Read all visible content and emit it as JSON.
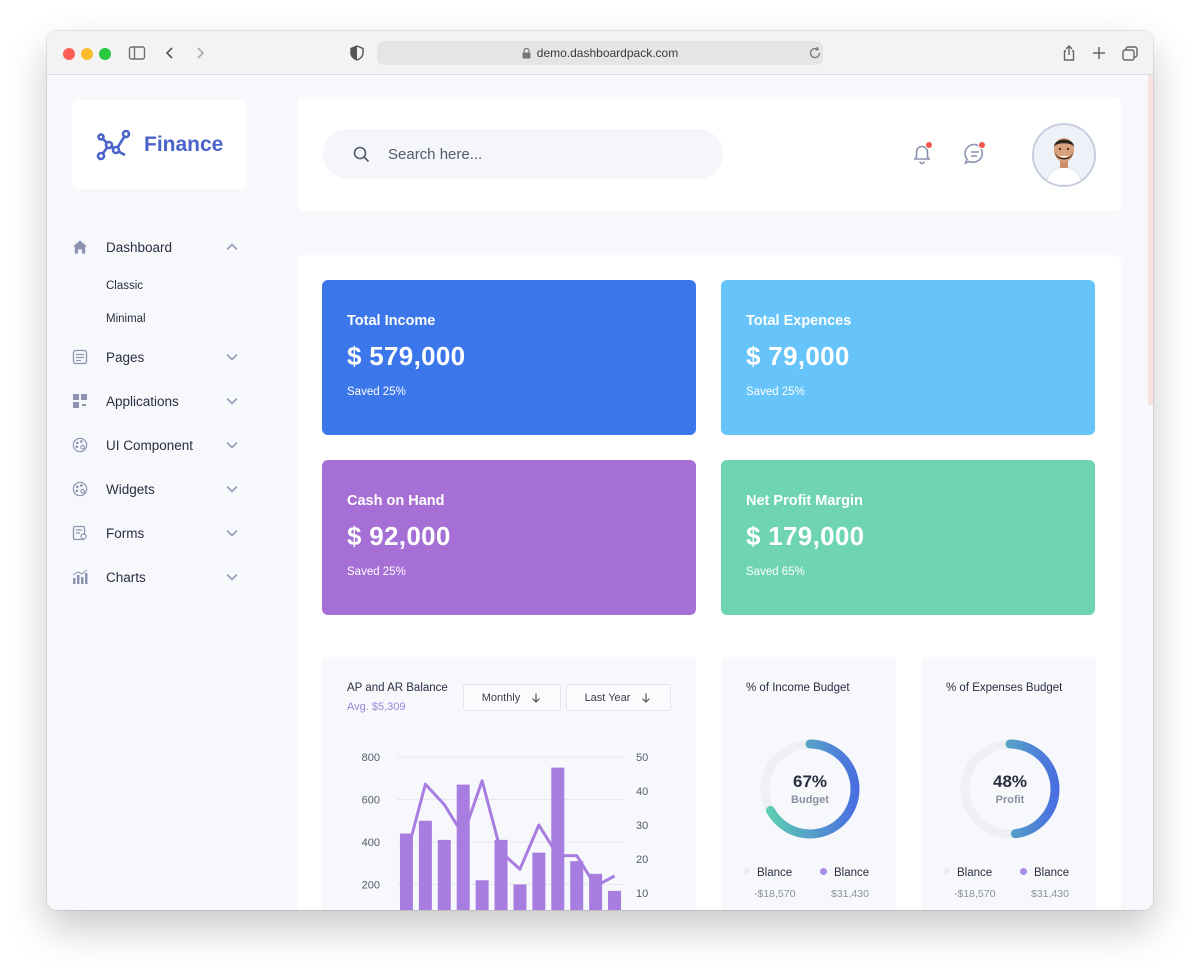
{
  "browser": {
    "url": "demo.dashboardpack.com"
  },
  "brand": {
    "name": "Finance"
  },
  "sidebar": {
    "items": [
      {
        "label": "Dashboard",
        "icon": "home-icon",
        "expanded": true,
        "children": [
          "Classic",
          "Minimal"
        ]
      },
      {
        "label": "Pages",
        "icon": "pages-icon"
      },
      {
        "label": "Applications",
        "icon": "grid-icon"
      },
      {
        "label": "UI Component",
        "icon": "palette-icon"
      },
      {
        "label": "Widgets",
        "icon": "palette-icon"
      },
      {
        "label": "Forms",
        "icon": "form-icon"
      },
      {
        "label": "Charts",
        "icon": "bar-chart-icon"
      }
    ]
  },
  "header": {
    "search_placeholder": "Search here..."
  },
  "stats": [
    {
      "title": "Total Income",
      "value": "$ 579,000",
      "sub": "Saved 25%",
      "color": "#3b76ea"
    },
    {
      "title": "Total Expences",
      "value": "$ 79,000",
      "sub": "Saved 25%",
      "color": "#66c4fb"
    },
    {
      "title": "Cash on Hand",
      "value": "$ 92,000",
      "sub": "Saved 25%",
      "color": "#a66fd5"
    },
    {
      "title": "Net Profit Margin",
      "value": "$ 179,000",
      "sub": "Saved 65%",
      "color": "#6fd4b1"
    }
  ],
  "balance_card": {
    "title": "AP and AR Balance",
    "avg": "Avg. $5,309",
    "period_options": {
      "selected": "Monthly"
    },
    "range_options": {
      "selected": "Last Year"
    }
  },
  "income_budget": {
    "title": "% of Income Budget",
    "percent": "67%",
    "label": "Budget",
    "legend": [
      {
        "name": "Blance",
        "value": "-$18,570"
      },
      {
        "name": "Blance",
        "value": "$31,430"
      }
    ]
  },
  "expenses_budget": {
    "title": "% of Expenses Budget",
    "percent": "48%",
    "label": "Profit",
    "legend": [
      {
        "name": "Blance",
        "value": "-$18,570"
      },
      {
        "name": "Blance",
        "value": "$31,430"
      }
    ]
  },
  "chart_data": {
    "type": "bar",
    "y_left_ticks": [
      "800",
      "600",
      "400",
      "200"
    ],
    "y_right_ticks": [
      "50",
      "40",
      "30",
      "20",
      "10"
    ],
    "ylim_left": [
      0,
      800
    ],
    "ylim_right": [
      0,
      50
    ],
    "series": [
      {
        "type": "bar",
        "axis": "left",
        "color": "#a77de0",
        "values": [
          440,
          500,
          410,
          670,
          220,
          410,
          200,
          350,
          750,
          310,
          250,
          170
        ]
      },
      {
        "type": "line",
        "axis": "right",
        "color": "#a77de0",
        "values": [
          21,
          42,
          36,
          27,
          43,
          22,
          17,
          30,
          21,
          21,
          12,
          15
        ]
      }
    ],
    "grid": true
  }
}
